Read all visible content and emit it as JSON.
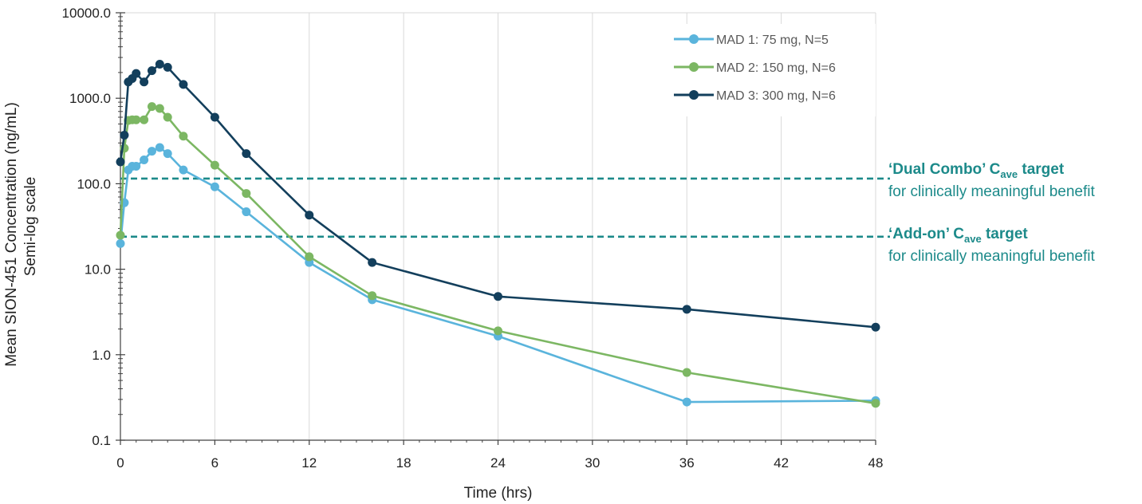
{
  "chart_data": {
    "type": "line",
    "xlabel": "Time (hrs)",
    "ylabel": "Mean SION-451 Concentration (ng/mL)",
    "ylabel_sub": "Semi-log scale",
    "yscale": "log",
    "xlim": [
      0,
      48
    ],
    "ylim": [
      0.1,
      10000
    ],
    "x_ticks": [
      "0",
      "6",
      "12",
      "18",
      "24",
      "30",
      "36",
      "42",
      "48"
    ],
    "y_ticks": [
      "0.1",
      "1.0",
      "10.0",
      "100.0",
      "1000.0",
      "10000.0"
    ],
    "grid": "vertical",
    "legend_position": "top-right",
    "series": [
      {
        "name": "MAD 1: 75 mg, N=5",
        "color": "#5ab4dc",
        "x": [
          0,
          0.25,
          0.5,
          0.75,
          1,
          1.5,
          2,
          2.5,
          3,
          4,
          6,
          8,
          12,
          16,
          24,
          36,
          48
        ],
        "y": [
          20,
          60,
          145,
          160,
          160,
          190,
          240,
          265,
          225,
          145,
          92,
          47,
          12,
          4.4,
          1.65,
          0.28,
          0.29
        ]
      },
      {
        "name": "MAD 2: 150 mg, N=6",
        "color": "#7cb763",
        "x": [
          0,
          0.25,
          0.5,
          0.75,
          1,
          1.5,
          2,
          2.5,
          3,
          4,
          6,
          8,
          12,
          16,
          24,
          36,
          48
        ],
        "y": [
          25,
          260,
          550,
          560,
          560,
          560,
          800,
          760,
          600,
          360,
          165,
          77,
          14,
          4.9,
          1.9,
          0.62,
          0.27
        ]
      },
      {
        "name": "MAD 3: 300 mg, N=6",
        "color": "#133f5c",
        "x": [
          0,
          0.25,
          0.5,
          0.75,
          1,
          1.5,
          2,
          2.5,
          3,
          4,
          6,
          8,
          12,
          16,
          24,
          36,
          48
        ],
        "y": [
          180,
          370,
          1550,
          1700,
          1950,
          1550,
          2100,
          2500,
          2300,
          1450,
          600,
          225,
          43,
          12,
          4.8,
          3.4,
          2.1
        ]
      }
    ],
    "reference_lines": [
      {
        "y": 115,
        "color": "#1c8a8a",
        "style": "dashed",
        "title_pre": "‘Dual Combo’ C",
        "title_sub": "ave",
        "title_post": " target",
        "subtitle": "for clinically meaningful benefit"
      },
      {
        "y": 24,
        "color": "#1c8a8a",
        "style": "dashed",
        "title_pre": "‘Add-on’ C",
        "title_sub": "ave",
        "title_post": " target",
        "subtitle": "for clinically meaningful benefit"
      }
    ]
  }
}
